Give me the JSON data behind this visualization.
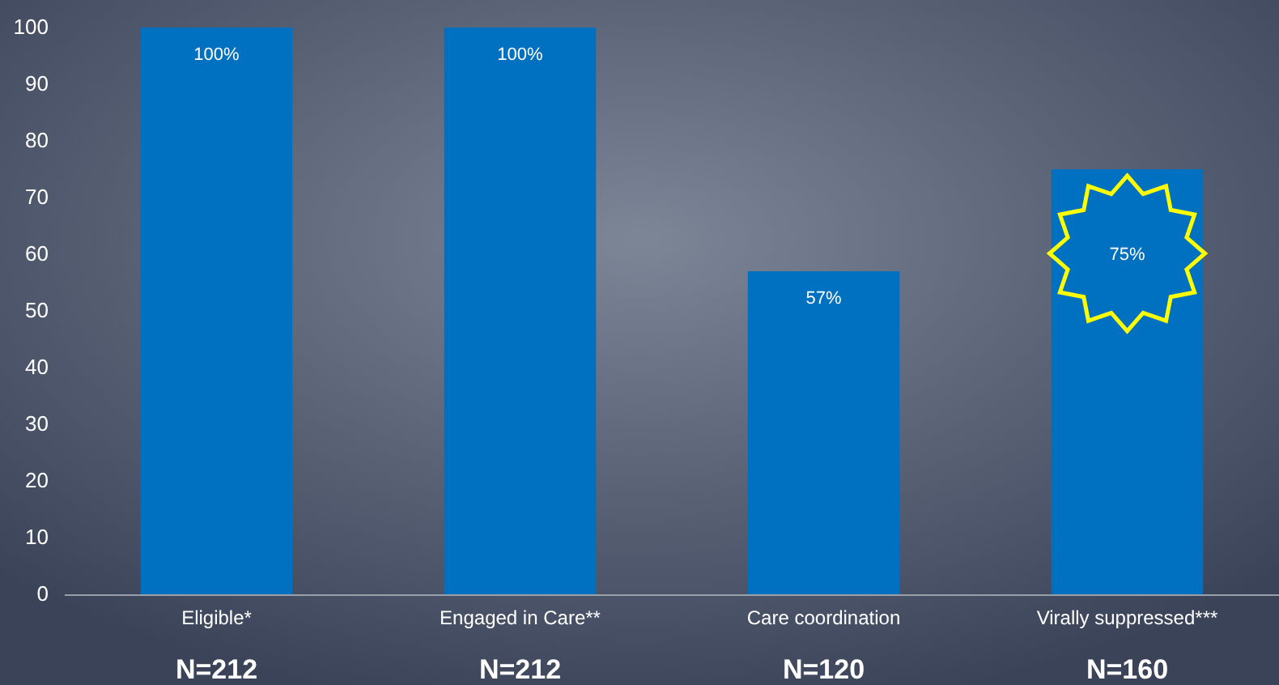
{
  "chart_data": {
    "type": "bar",
    "categories": [
      "Eligible*",
      "Engaged in Care**",
      "Care coordination",
      "Virally suppressed***"
    ],
    "values": [
      100,
      100,
      57,
      75
    ],
    "color": "#0070c0",
    "value_labels": [
      "100%",
      "100%",
      "57%",
      "75%"
    ],
    "ylim": [
      0,
      100
    ],
    "yticks": [
      0,
      10,
      20,
      30,
      40,
      50,
      60,
      70,
      80,
      90,
      100
    ],
    "grid": false,
    "annotations": [
      "N=212",
      "N=212",
      "N=120",
      "N=160"
    ]
  }
}
